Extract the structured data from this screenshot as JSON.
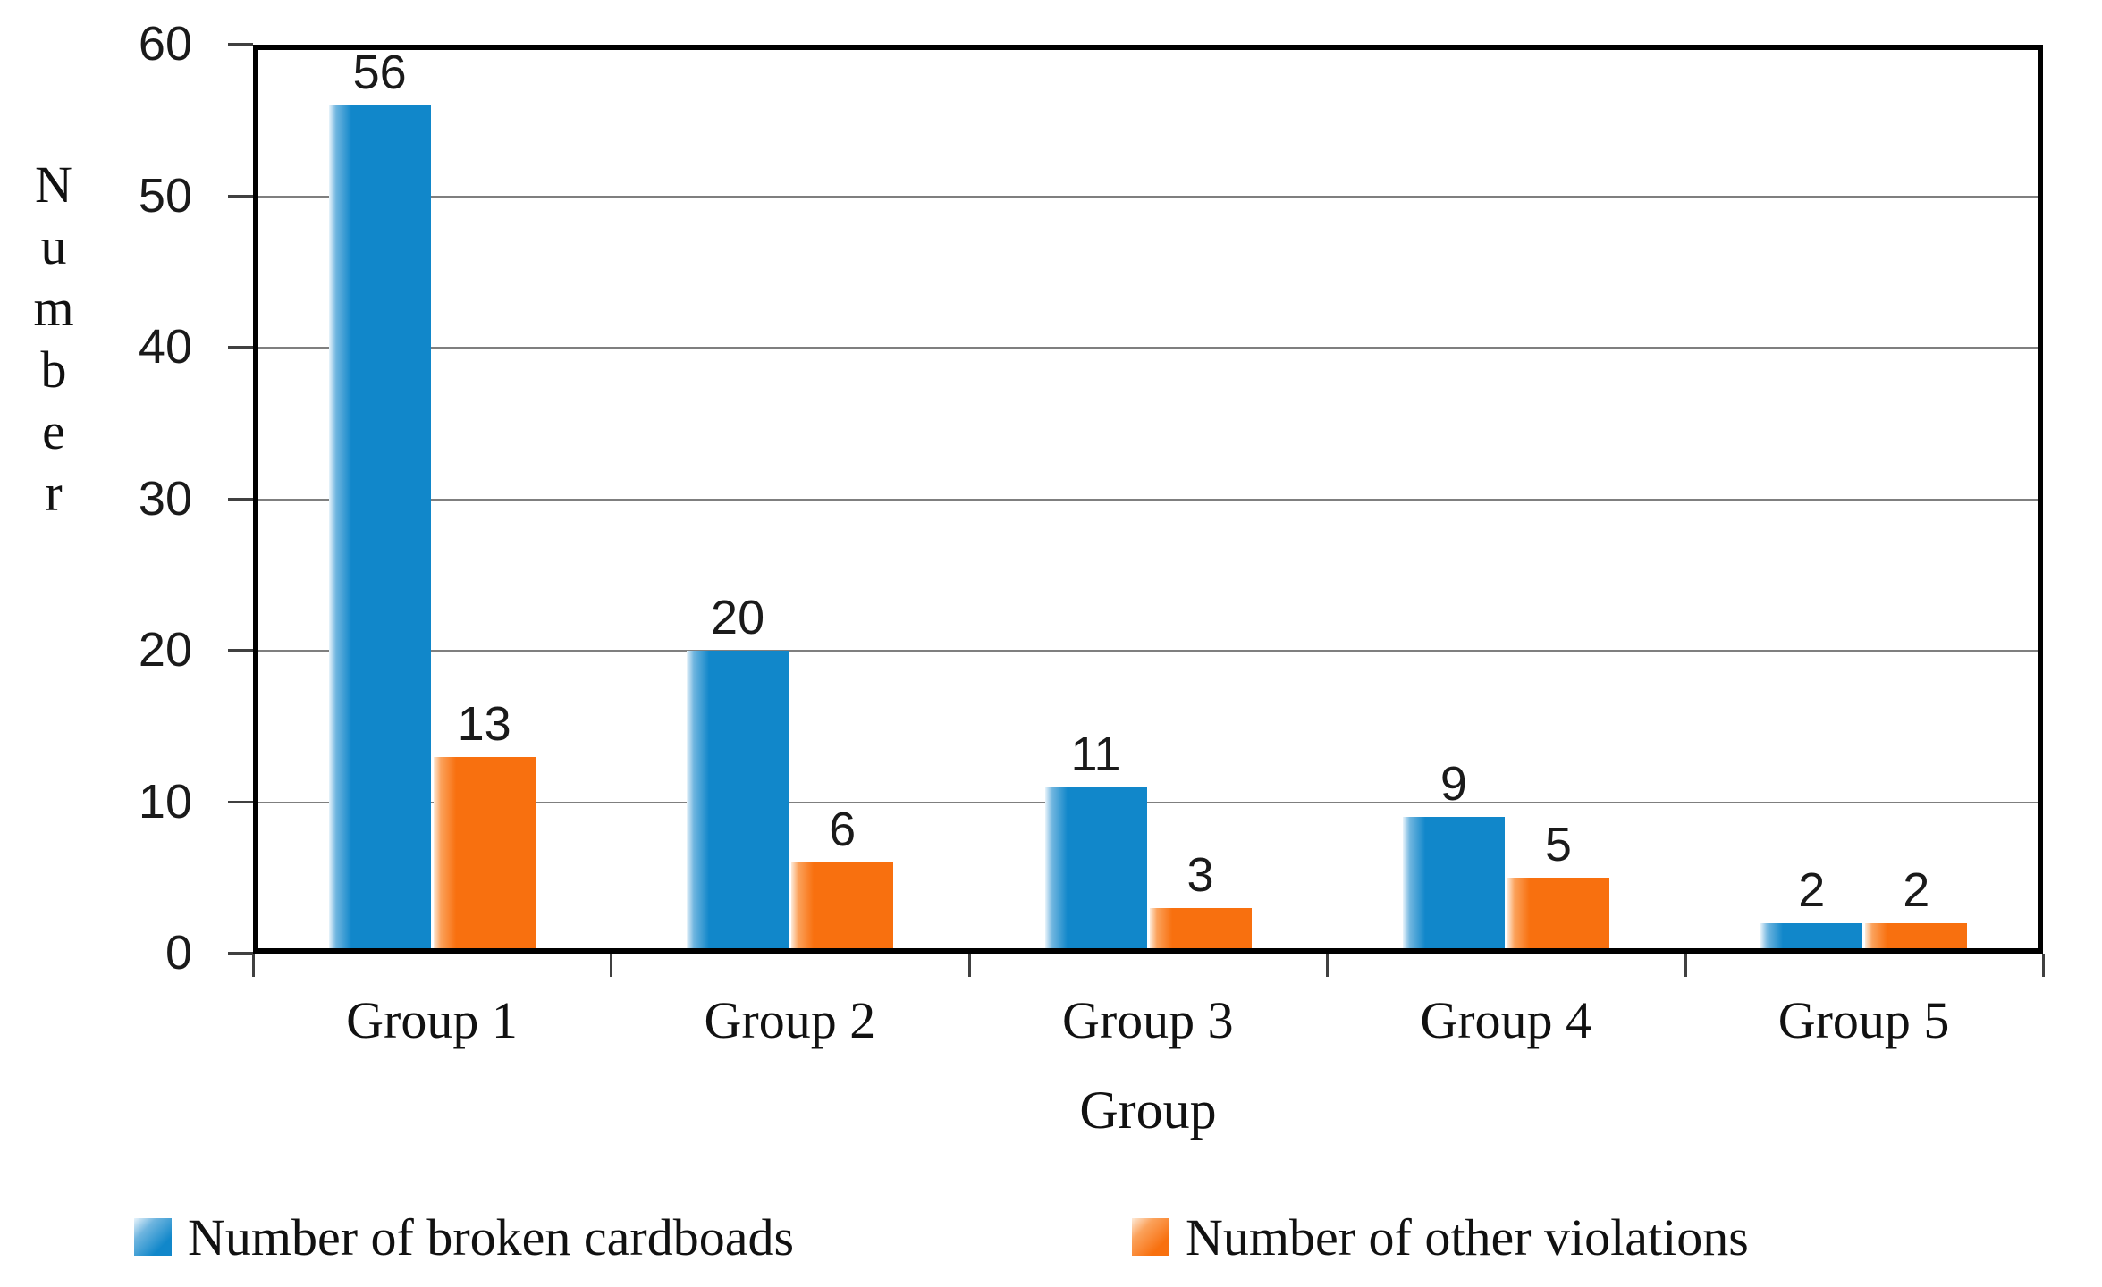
{
  "chart_data": {
    "type": "bar",
    "title": "",
    "categories": [
      "Group 1",
      "Group 2",
      "Group 3",
      "Group 4",
      "Group 5"
    ],
    "series": [
      {
        "name": "Number of broken cardboads",
        "values": [
          56,
          20,
          11,
          9,
          2
        ],
        "color": "#1187CA",
        "color_mid": "#6FB5DF",
        "color_light": "#E9F4FB"
      },
      {
        "name": "Number of other violations",
        "values": [
          13,
          6,
          3,
          5,
          2
        ],
        "color": "#F8700F",
        "color_mid": "#FBA25C",
        "color_light": "#FDEBDA"
      }
    ],
    "xlabel": "Group",
    "ylabel": "Number",
    "ylim": [
      0,
      60
    ],
    "yticks": [
      0,
      10,
      20,
      30,
      40,
      50,
      60
    ],
    "grid": true,
    "legend_position": "bottom",
    "data_labels": true,
    "colors": {
      "gridline": "#7f7f7f",
      "axis_frame": "#000000",
      "tick_mark": "#404040",
      "label_text": "#1a1a1a"
    }
  }
}
